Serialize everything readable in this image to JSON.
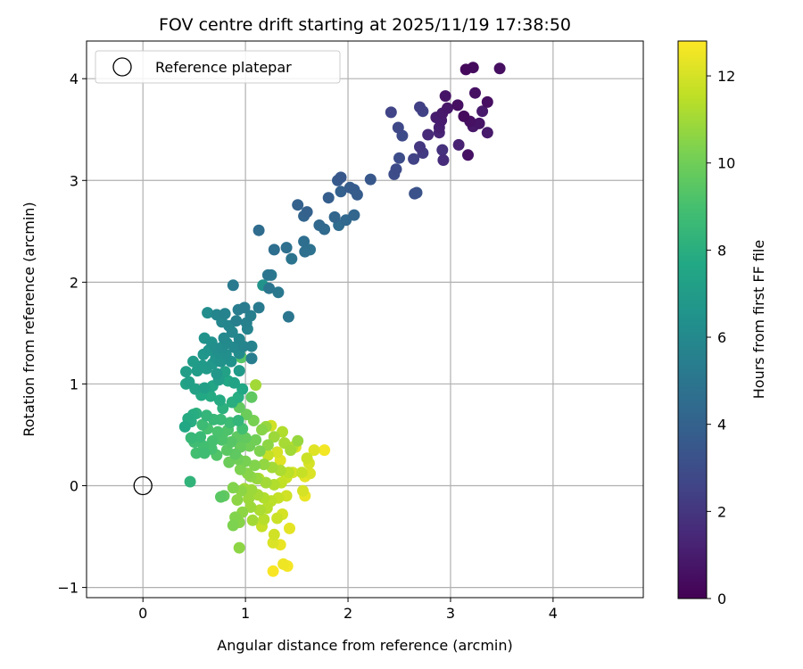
{
  "chart_data": {
    "type": "scatter",
    "title": "FOV centre drift starting at 2025/11/19 17:38:50",
    "xlabel": "Angular distance from reference (arcmin)",
    "ylabel": "Rotation from reference (arcmin)",
    "xlim": [
      -0.55,
      4.88
    ],
    "ylim": [
      -1.1,
      4.37
    ],
    "xticks": [
      0,
      1,
      2,
      3,
      4
    ],
    "yticks": [
      -1,
      0,
      1,
      2,
      3,
      4
    ],
    "grid": true,
    "legend": {
      "placement": "upper-left",
      "entries": [
        "Reference platepar"
      ]
    },
    "reference_point": {
      "x": 0.0,
      "y": 0.0
    },
    "colorbar": {
      "label": "Hours from first FF file",
      "colormap": "viridis",
      "range": [
        0,
        12.8
      ],
      "ticks": [
        0,
        2,
        4,
        6,
        8,
        10,
        12
      ]
    },
    "series": [
      {
        "color_value_unit": "hours",
        "points": [
          [
            3.15,
            4.09,
            0.3
          ],
          [
            3.22,
            4.11,
            0.4
          ],
          [
            3.48,
            4.1,
            0.5
          ],
          [
            3.24,
            3.86,
            0.6
          ],
          [
            2.95,
            3.83,
            0.7
          ],
          [
            3.36,
            3.77,
            0.5
          ],
          [
            2.97,
            3.71,
            0.8
          ],
          [
            3.31,
            3.68,
            0.9
          ],
          [
            3.13,
            3.63,
            0.4
          ],
          [
            2.86,
            3.62,
            1.0
          ],
          [
            3.19,
            3.58,
            0.6
          ],
          [
            3.28,
            3.56,
            0.7
          ],
          [
            2.89,
            3.52,
            1.1
          ],
          [
            3.22,
            3.53,
            0.8
          ],
          [
            3.36,
            3.47,
            0.9
          ],
          [
            2.78,
            3.45,
            1.5
          ],
          [
            3.17,
            3.25,
            0.6
          ],
          [
            3.08,
            3.35,
            1.2
          ],
          [
            2.92,
            3.3,
            1.8
          ],
          [
            2.93,
            3.2,
            1.6
          ],
          [
            2.7,
            3.33,
            2.0
          ],
          [
            2.73,
            3.27,
            2.2
          ],
          [
            2.64,
            3.21,
            2.5
          ],
          [
            2.89,
            3.47,
            1.3
          ],
          [
            2.91,
            3.59,
            1.0
          ],
          [
            2.92,
            3.66,
            0.9
          ],
          [
            3.07,
            3.74,
            0.5
          ],
          [
            2.42,
            3.67,
            2.6
          ],
          [
            2.7,
            3.72,
            2.4
          ],
          [
            2.73,
            3.68,
            2.5
          ],
          [
            2.49,
            3.52,
            2.8
          ],
          [
            2.53,
            3.44,
            2.9
          ],
          [
            2.5,
            3.22,
            3.0
          ],
          [
            2.47,
            3.11,
            2.9
          ],
          [
            2.45,
            3.06,
            3.0
          ],
          [
            2.65,
            2.87,
            3.2
          ],
          [
            2.67,
            2.88,
            3.3
          ],
          [
            2.22,
            3.01,
            3.5
          ],
          [
            1.9,
            3.0,
            3.6
          ],
          [
            1.93,
            3.03,
            3.5
          ],
          [
            2.02,
            2.93,
            3.7
          ],
          [
            2.06,
            2.91,
            3.8
          ],
          [
            2.09,
            2.86,
            3.7
          ],
          [
            1.93,
            2.89,
            3.9
          ],
          [
            1.81,
            2.83,
            3.8
          ],
          [
            1.51,
            2.76,
            4.0
          ],
          [
            1.57,
            2.65,
            4.1
          ],
          [
            1.6,
            2.69,
            4.0
          ],
          [
            1.87,
            2.64,
            4.2
          ],
          [
            1.98,
            2.61,
            4.3
          ],
          [
            2.06,
            2.66,
            4.2
          ],
          [
            1.72,
            2.56,
            4.3
          ],
          [
            1.77,
            2.52,
            4.4
          ],
          [
            1.91,
            2.56,
            4.5
          ],
          [
            1.13,
            2.51,
            4.5
          ],
          [
            1.57,
            2.4,
            4.6
          ],
          [
            1.4,
            2.34,
            4.7
          ],
          [
            1.28,
            2.32,
            4.6
          ],
          [
            1.63,
            2.32,
            4.8
          ],
          [
            1.58,
            2.3,
            4.7
          ],
          [
            1.45,
            2.23,
            4.9
          ],
          [
            1.22,
            2.07,
            5.0
          ],
          [
            1.25,
            2.07,
            5.1
          ],
          [
            1.23,
            1.94,
            5.0
          ],
          [
            1.32,
            1.9,
            5.1
          ],
          [
            1.17,
            1.97,
            6.5
          ],
          [
            0.88,
            1.97,
            5.2
          ],
          [
            1.42,
            1.66,
            5.0
          ],
          [
            1.13,
            1.75,
            5.2
          ],
          [
            0.99,
            1.75,
            5.3
          ],
          [
            0.93,
            1.73,
            5.4
          ],
          [
            1.05,
            1.67,
            5.5
          ],
          [
            1.01,
            1.6,
            5.6
          ],
          [
            0.91,
            1.62,
            5.5
          ],
          [
            0.8,
            1.69,
            5.7
          ],
          [
            0.72,
            1.68,
            5.8
          ],
          [
            0.63,
            1.7,
            6.2
          ],
          [
            0.77,
            1.61,
            5.9
          ],
          [
            0.84,
            1.57,
            5.8
          ],
          [
            0.87,
            1.51,
            5.9
          ],
          [
            1.02,
            1.54,
            5.7
          ],
          [
            0.94,
            1.44,
            5.8
          ],
          [
            0.79,
            1.45,
            6.0
          ],
          [
            0.82,
            1.4,
            6.1
          ],
          [
            1.06,
            1.37,
            5.7
          ],
          [
            0.98,
            1.37,
            5.8
          ],
          [
            0.89,
            1.36,
            6.0
          ],
          [
            0.6,
            1.45,
            6.5
          ],
          [
            0.67,
            1.41,
            6.4
          ],
          [
            0.77,
            1.36,
            6.2
          ],
          [
            0.71,
            1.35,
            6.3
          ],
          [
            0.64,
            1.33,
            6.6
          ],
          [
            0.73,
            1.31,
            6.4
          ],
          [
            0.81,
            1.29,
            6.3
          ],
          [
            0.94,
            1.3,
            6.1
          ],
          [
            0.59,
            1.29,
            6.7
          ],
          [
            0.71,
            1.25,
            6.6
          ],
          [
            0.76,
            1.22,
            6.5
          ],
          [
            0.86,
            1.22,
            6.4
          ],
          [
            0.68,
            1.2,
            6.8
          ],
          [
            0.58,
            1.18,
            6.9
          ],
          [
            0.49,
            1.22,
            7.0
          ],
          [
            0.42,
            1.12,
            7.1
          ],
          [
            0.53,
            1.13,
            7.0
          ],
          [
            0.62,
            1.15,
            6.9
          ],
          [
            0.72,
            1.1,
            6.8
          ],
          [
            0.8,
            1.12,
            7.3
          ],
          [
            0.94,
            1.13,
            6.9
          ],
          [
            1.06,
            1.25,
            5.4
          ],
          [
            0.96,
            1.26,
            9.4
          ],
          [
            0.45,
            1.02,
            7.2
          ],
          [
            0.42,
            1.0,
            7.4
          ],
          [
            0.51,
            0.95,
            7.3
          ],
          [
            0.6,
            0.96,
            7.2
          ],
          [
            0.68,
            0.98,
            7.5
          ],
          [
            0.74,
            1.04,
            7.1
          ],
          [
            0.83,
            1.03,
            7.6
          ],
          [
            0.89,
            1.01,
            7.4
          ],
          [
            0.97,
            0.95,
            7.6
          ],
          [
            0.93,
            0.87,
            7.9
          ],
          [
            0.66,
            0.88,
            7.8
          ],
          [
            0.57,
            0.89,
            7.7
          ],
          [
            0.75,
            0.84,
            7.8
          ],
          [
            0.87,
            0.82,
            8.0
          ],
          [
            0.78,
            0.76,
            8.1
          ],
          [
            0.49,
            0.7,
            7.9
          ],
          [
            0.44,
            0.66,
            7.8
          ],
          [
            0.41,
            0.58,
            7.6
          ],
          [
            0.47,
            0.63,
            7.9
          ],
          [
            0.52,
            0.71,
            8.1
          ],
          [
            0.62,
            0.69,
            8.4
          ],
          [
            0.69,
            0.65,
            8.5
          ],
          [
            0.76,
            0.65,
            8.6
          ],
          [
            0.85,
            0.62,
            8.7
          ],
          [
            0.93,
            0.64,
            8.4
          ],
          [
            0.97,
            0.56,
            8.9
          ],
          [
            0.83,
            0.55,
            9.2
          ],
          [
            0.73,
            0.53,
            9.1
          ],
          [
            0.63,
            0.56,
            9.0
          ],
          [
            0.58,
            0.6,
            8.7
          ],
          [
            0.56,
            0.48,
            8.6
          ],
          [
            0.47,
            0.47,
            8.5
          ],
          [
            0.5,
            0.43,
            8.8
          ],
          [
            0.59,
            0.39,
            8.9
          ],
          [
            0.68,
            0.44,
            9.0
          ],
          [
            0.77,
            0.45,
            9.2
          ],
          [
            0.86,
            0.43,
            9.4
          ],
          [
            0.92,
            0.48,
            9.6
          ],
          [
            1.0,
            0.47,
            9.7
          ],
          [
            1.1,
            0.45,
            10.0
          ],
          [
            1.16,
            0.55,
            10.5
          ],
          [
            1.2,
            0.58,
            10.8
          ],
          [
            1.08,
            0.64,
            10.2
          ],
          [
            1.01,
            0.7,
            9.9
          ],
          [
            0.94,
            0.77,
            9.7
          ],
          [
            1.06,
            0.87,
            9.6
          ],
          [
            0.78,
            0.51,
            9.3
          ],
          [
            0.67,
            0.36,
            9.0
          ],
          [
            0.6,
            0.32,
            8.8
          ],
          [
            0.52,
            0.32,
            8.9
          ],
          [
            0.72,
            0.3,
            9.3
          ],
          [
            0.82,
            0.35,
            9.5
          ],
          [
            0.9,
            0.31,
            9.6
          ],
          [
            0.95,
            0.38,
            9.8
          ],
          [
            1.04,
            0.39,
            10.0
          ],
          [
            1.14,
            0.34,
            10.3
          ],
          [
            1.22,
            0.4,
            10.6
          ],
          [
            1.28,
            0.48,
            10.9
          ],
          [
            1.36,
            0.53,
            11.3
          ],
          [
            1.38,
            0.42,
            11.1
          ],
          [
            1.46,
            0.38,
            11.4
          ],
          [
            1.51,
            0.44,
            10.8
          ],
          [
            1.6,
            0.27,
            11.8
          ],
          [
            1.62,
            0.22,
            12.0
          ],
          [
            1.67,
            0.35,
            12.2
          ],
          [
            1.55,
            0.13,
            11.7
          ],
          [
            1.63,
            0.12,
            12.1
          ],
          [
            1.58,
            0.09,
            12.3
          ],
          [
            1.42,
            0.13,
            11.5
          ],
          [
            1.34,
            0.15,
            11.2
          ],
          [
            1.26,
            0.18,
            11.0
          ],
          [
            1.18,
            0.21,
            10.7
          ],
          [
            1.09,
            0.2,
            10.4
          ],
          [
            1.0,
            0.24,
            10.2
          ],
          [
            0.93,
            0.26,
            10.0
          ],
          [
            0.84,
            0.23,
            9.9
          ],
          [
            0.95,
            0.16,
            10.3
          ],
          [
            1.02,
            0.12,
            10.5
          ],
          [
            1.11,
            0.07,
            10.8
          ],
          [
            1.2,
            0.03,
            11.0
          ],
          [
            1.28,
            0.01,
            11.3
          ],
          [
            1.35,
            0.03,
            11.6
          ],
          [
            1.4,
            0.08,
            11.8
          ],
          [
            1.46,
            0.13,
            12.0
          ],
          [
            1.06,
            -0.04,
            10.9
          ],
          [
            0.96,
            -0.05,
            10.6
          ],
          [
            0.88,
            -0.02,
            10.4
          ],
          [
            0.79,
            -0.1,
            9.7
          ],
          [
            0.76,
            -0.11,
            9.5
          ],
          [
            0.46,
            0.04,
            8.3
          ],
          [
            0.92,
            -0.14,
            10.6
          ],
          [
            1.03,
            -0.13,
            10.9
          ],
          [
            1.12,
            -0.09,
            11.1
          ],
          [
            1.18,
            -0.12,
            11.3
          ],
          [
            1.25,
            -0.15,
            11.5
          ],
          [
            1.32,
            -0.12,
            11.7
          ],
          [
            1.4,
            -0.1,
            11.9
          ],
          [
            1.58,
            -0.1,
            12.4
          ],
          [
            1.21,
            -0.22,
            11.4
          ],
          [
            1.14,
            -0.24,
            11.2
          ],
          [
            1.05,
            -0.21,
            10.9
          ],
          [
            0.97,
            -0.26,
            10.6
          ],
          [
            0.9,
            -0.31,
            10.4
          ],
          [
            0.94,
            -0.36,
            10.5
          ],
          [
            1.07,
            -0.34,
            11.0
          ],
          [
            1.18,
            -0.33,
            11.4
          ],
          [
            1.31,
            -0.32,
            11.8
          ],
          [
            1.36,
            -0.28,
            12.0
          ],
          [
            1.43,
            -0.42,
            12.3
          ],
          [
            1.28,
            -0.48,
            11.9
          ],
          [
            0.88,
            -0.39,
            10.3
          ],
          [
            1.27,
            -0.56,
            12.1
          ],
          [
            1.34,
            -0.58,
            12.4
          ],
          [
            0.94,
            -0.61,
            10.6
          ],
          [
            1.37,
            -0.77,
            12.5
          ],
          [
            1.41,
            -0.79,
            12.6
          ],
          [
            1.27,
            -0.84,
            12.7
          ],
          [
            1.16,
            -0.4,
            11.7
          ],
          [
            1.1,
            0.99,
            11.0
          ],
          [
            1.44,
            0.35,
            11.0
          ],
          [
            1.49,
            0.38,
            12.2
          ],
          [
            1.25,
            0.59,
            11.9
          ],
          [
            1.77,
            0.35,
            12.6
          ],
          [
            1.56,
            -0.05,
            12.0
          ],
          [
            1.31,
            0.33,
            12.0
          ],
          [
            1.34,
            0.25,
            12.2
          ],
          [
            1.22,
            0.3,
            11.7
          ],
          [
            1.13,
            0.07,
            11.4
          ],
          [
            0.99,
            -0.03,
            11.0
          ],
          [
            1.05,
            0.09,
            10.6
          ]
        ]
      }
    ]
  }
}
